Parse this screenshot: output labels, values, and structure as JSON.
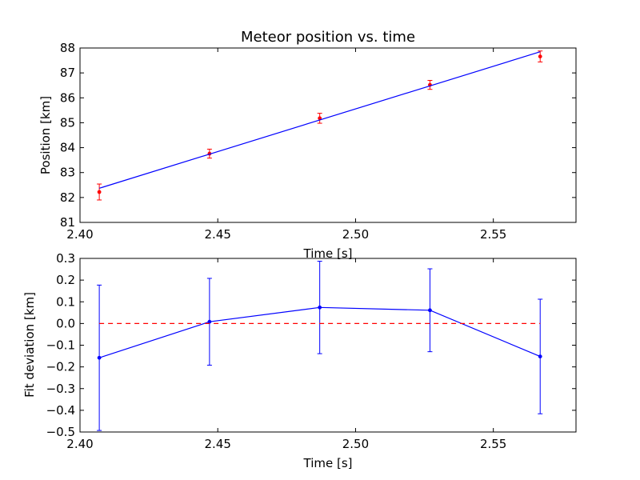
{
  "chart_data": [
    {
      "type": "scatter",
      "title": "Meteor position vs. time",
      "xlabel": "Time [s]",
      "ylabel": "Position [km]",
      "xlim": [
        2.4,
        2.58
      ],
      "ylim": [
        81,
        88
      ],
      "xticks": [
        "2.40",
        "2.45",
        "2.50",
        "2.55"
      ],
      "yticks": [
        "81",
        "82",
        "83",
        "84",
        "85",
        "86",
        "87",
        "88"
      ],
      "grid": false,
      "series": [
        {
          "kind": "points-with-error",
          "color": "#ff0000",
          "x": [
            2.407,
            2.447,
            2.487,
            2.527,
            2.567
          ],
          "y": [
            82.22,
            83.76,
            85.18,
            86.52,
            87.66
          ],
          "yerr": [
            0.32,
            0.18,
            0.2,
            0.18,
            0.22
          ]
        },
        {
          "kind": "fit-line",
          "color": "#0000ff",
          "x": [
            2.407,
            2.567
          ],
          "y": [
            82.37,
            87.85
          ]
        }
      ]
    },
    {
      "type": "line",
      "title": "",
      "xlabel": "Time [s]",
      "ylabel": "Fit deviation [km]",
      "xlim": [
        2.4,
        2.58
      ],
      "ylim": [
        -0.5,
        0.3
      ],
      "xticks": [
        "2.40",
        "2.45",
        "2.50",
        "2.55"
      ],
      "yticks": [
        "−0.5",
        "−0.4",
        "−0.3",
        "−0.2",
        "−0.1",
        "0.0",
        "0.1",
        "0.2",
        "0.3"
      ],
      "grid": false,
      "series": [
        {
          "kind": "line-with-error",
          "color": "#0000ff",
          "x": [
            2.407,
            2.447,
            2.487,
            2.527,
            2.567
          ],
          "y": [
            -0.158,
            0.008,
            0.074,
            0.061,
            -0.152
          ],
          "yerr": [
            0.335,
            0.2,
            0.213,
            0.191,
            0.264
          ]
        },
        {
          "kind": "zero-reference",
          "color": "#ff0000",
          "x": [
            2.407,
            2.567
          ],
          "y": [
            0,
            0
          ]
        }
      ]
    }
  ]
}
